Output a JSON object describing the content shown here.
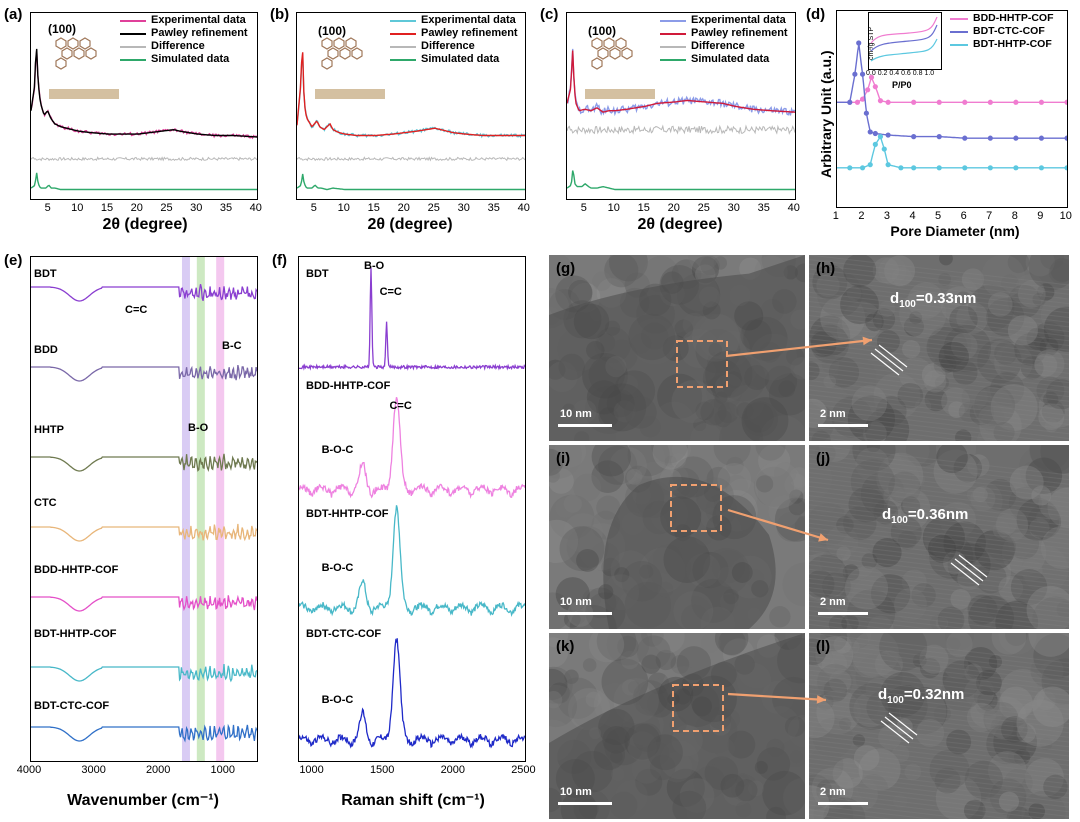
{
  "chart_data": [
    {
      "id": "a",
      "type": "line",
      "label": "(a)",
      "xlabel": "2θ (degree)",
      "xlim": [
        2,
        40
      ],
      "xticks": [
        "5",
        "10",
        "15",
        "20",
        "25",
        "30",
        "35",
        "40"
      ],
      "annotation": "(100)",
      "legend": [
        "Experimental data",
        "Pawley refinement",
        "Difference",
        "Simulated data"
      ],
      "series": [
        {
          "name": "Experimental data",
          "color": "#e0409a",
          "x": [
            2,
            2.6,
            2.9,
            3.2,
            3.6,
            4.2,
            4.8,
            5.3,
            6,
            7,
            8,
            10,
            12,
            15,
            18,
            20,
            22,
            24,
            26,
            27,
            30,
            33,
            36,
            40
          ],
          "y": [
            0.55,
            0.7,
            1.0,
            0.75,
            0.6,
            0.52,
            0.56,
            0.5,
            0.46,
            0.44,
            0.43,
            0.41,
            0.4,
            0.39,
            0.39,
            0.39,
            0.4,
            0.41,
            0.42,
            0.41,
            0.39,
            0.38,
            0.38,
            0.37
          ]
        },
        {
          "name": "Pawley refinement",
          "color": "#000000",
          "x": [
            2,
            2.6,
            2.9,
            3.2,
            3.6,
            4.2,
            4.8,
            5.3,
            6,
            7,
            8,
            10,
            12,
            15,
            18,
            20,
            22,
            24,
            26,
            27,
            30,
            33,
            36,
            40
          ],
          "y": [
            0.55,
            0.72,
            1.02,
            0.74,
            0.6,
            0.52,
            0.55,
            0.5,
            0.46,
            0.44,
            0.43,
            0.41,
            0.4,
            0.39,
            0.39,
            0.39,
            0.4,
            0.41,
            0.42,
            0.41,
            0.39,
            0.38,
            0.38,
            0.37
          ]
        },
        {
          "name": "Difference",
          "color": "#b8b8b8",
          "x": [
            2,
            40
          ],
          "y": [
            0.22,
            0.22
          ]
        },
        {
          "name": "Simulated data",
          "color": "#2ea86a",
          "x": [
            2,
            2.7,
            2.9,
            3.2,
            3.6,
            4.5,
            5,
            5.4,
            6,
            7,
            10,
            20,
            40
          ],
          "y": [
            0.02,
            0.04,
            0.14,
            0.05,
            0.02,
            0.02,
            0.04,
            0.02,
            0.02,
            0.01,
            0.01,
            0.01,
            0.01
          ]
        }
      ]
    },
    {
      "id": "b",
      "type": "line",
      "label": "(b)",
      "xlabel": "2θ (degree)",
      "xlim": [
        2,
        40
      ],
      "xticks": [
        "5",
        "10",
        "15",
        "20",
        "25",
        "30",
        "35",
        "40"
      ],
      "annotation": "(100)",
      "legend": [
        "Experimental data",
        "Pawley refinement",
        "Difference",
        "Simulated data"
      ],
      "series": [
        {
          "name": "Experimental data",
          "color": "#5fc8d8",
          "x": [
            2,
            2.6,
            2.9,
            3.2,
            3.6,
            4.5,
            5.3,
            5.8,
            6.5,
            7.5,
            8,
            9,
            10,
            12,
            15,
            18,
            20,
            22,
            25,
            26,
            28,
            30,
            33,
            36,
            40
          ],
          "y": [
            0.45,
            0.7,
            1.0,
            0.6,
            0.5,
            0.44,
            0.48,
            0.44,
            0.42,
            0.46,
            0.42,
            0.4,
            0.39,
            0.38,
            0.38,
            0.39,
            0.4,
            0.41,
            0.43,
            0.42,
            0.4,
            0.39,
            0.38,
            0.38,
            0.38
          ]
        },
        {
          "name": "Pawley refinement",
          "color": "#e02020",
          "x": [
            2,
            2.6,
            2.9,
            3.2,
            3.6,
            4.5,
            5.3,
            5.8,
            6.5,
            7.5,
            8,
            9,
            10,
            12,
            15,
            18,
            20,
            22,
            25,
            26,
            28,
            30,
            33,
            36,
            40
          ],
          "y": [
            0.45,
            0.72,
            1.02,
            0.6,
            0.5,
            0.44,
            0.48,
            0.44,
            0.42,
            0.46,
            0.42,
            0.4,
            0.39,
            0.38,
            0.38,
            0.39,
            0.4,
            0.41,
            0.43,
            0.42,
            0.4,
            0.39,
            0.38,
            0.38,
            0.38
          ]
        },
        {
          "name": "Difference",
          "color": "#b8b8b8",
          "x": [
            2,
            40
          ],
          "y": [
            0.22,
            0.22
          ]
        },
        {
          "name": "Simulated data",
          "color": "#2ea86a",
          "x": [
            2,
            2.7,
            2.9,
            3.2,
            3.6,
            4.5,
            5,
            5.5,
            6,
            7,
            8,
            10,
            20,
            40
          ],
          "y": [
            0.02,
            0.04,
            0.13,
            0.05,
            0.02,
            0.02,
            0.04,
            0.02,
            0.02,
            0.01,
            0.02,
            0.01,
            0.01,
            0.01
          ]
        }
      ]
    },
    {
      "id": "c",
      "type": "line",
      "label": "(c)",
      "xlabel": "2θ (degree)",
      "xlim": [
        2,
        40
      ],
      "xticks": [
        "5",
        "10",
        "15",
        "20",
        "25",
        "30",
        "35",
        "40"
      ],
      "annotation": "(100)",
      "legend": [
        "Experimental data",
        "Pawley refinement",
        "Difference",
        "Simulated data"
      ],
      "series": [
        {
          "name": "Experimental data",
          "color": "#8c9ce8",
          "x": [
            2,
            2.6,
            3,
            3.2,
            3.5,
            4,
            5,
            6,
            7,
            8,
            9,
            10,
            12,
            15,
            17,
            20,
            22,
            25,
            28,
            30,
            33,
            36,
            40
          ],
          "y": [
            0.6,
            0.7,
            1.0,
            0.7,
            0.6,
            0.55,
            0.57,
            0.55,
            0.58,
            0.54,
            0.56,
            0.55,
            0.56,
            0.58,
            0.6,
            0.61,
            0.62,
            0.61,
            0.6,
            0.58,
            0.56,
            0.55,
            0.54
          ]
        },
        {
          "name": "Pawley refinement",
          "color": "#d01a3a",
          "x": [
            2,
            2.6,
            3,
            3.2,
            3.5,
            4,
            5,
            6,
            7,
            8,
            9,
            10,
            12,
            15,
            17,
            20,
            22,
            25,
            28,
            30,
            33,
            36,
            40
          ],
          "y": [
            0.6,
            0.7,
            1.0,
            0.7,
            0.6,
            0.55,
            0.56,
            0.55,
            0.57,
            0.54,
            0.55,
            0.55,
            0.56,
            0.58,
            0.6,
            0.61,
            0.62,
            0.61,
            0.6,
            0.58,
            0.56,
            0.55,
            0.54
          ]
        },
        {
          "name": "Difference",
          "color": "#b8b8b8",
          "x": [
            2,
            40
          ],
          "y": [
            0.42,
            0.42
          ]
        },
        {
          "name": "Simulated data",
          "color": "#2ea86a",
          "x": [
            2,
            2.7,
            3,
            3.3,
            3.7,
            4.5,
            5,
            5.6,
            6,
            7,
            8,
            10,
            20,
            40
          ],
          "y": [
            0.02,
            0.04,
            0.16,
            0.05,
            0.03,
            0.03,
            0.05,
            0.03,
            0.02,
            0.02,
            0.03,
            0.01,
            0.01,
            0.01
          ]
        }
      ]
    },
    {
      "id": "d",
      "type": "line",
      "label": "(d)",
      "xlabel": "Pore Diameter (nm)",
      "ylabel": "Arbitrary Unit (a.u.)",
      "xlim": [
        1,
        10
      ],
      "xticks": [
        "1",
        "2",
        "3",
        "4",
        "5",
        "6",
        "7",
        "8",
        "9",
        "10"
      ],
      "legend": [
        "BDD-HHTP-COF",
        "BDT-CTC-COF",
        "BDT-HHTP-COF"
      ],
      "inset": {
        "ylabel": "cm³/g STP",
        "xlabel": "P/P0",
        "xticks": [
          "0.0",
          "0.2",
          "0.4",
          "0.6",
          "0.8",
          "1.0"
        ]
      },
      "series": [
        {
          "name": "BDD-HHTP-COF",
          "color": "#f07cd0",
          "x": [
            1.5,
            1.8,
            2,
            2.2,
            2.35,
            2.5,
            2.7,
            3,
            4,
            5,
            6,
            7,
            8,
            9,
            10
          ],
          "y": [
            0.62,
            0.62,
            0.64,
            0.7,
            0.78,
            0.72,
            0.63,
            0.62,
            0.62,
            0.62,
            0.62,
            0.62,
            0.62,
            0.62,
            0.62
          ]
        },
        {
          "name": "BDT-CTC-COF",
          "color": "#6a6fd0",
          "x": [
            1.5,
            1.7,
            1.85,
            2,
            2.15,
            2.3,
            2.5,
            3,
            4,
            5,
            6,
            7,
            8,
            9,
            10
          ],
          "y": [
            0.62,
            0.8,
            1.0,
            0.8,
            0.55,
            0.43,
            0.42,
            0.41,
            0.4,
            0.4,
            0.39,
            0.39,
            0.39,
            0.39,
            0.39
          ]
        },
        {
          "name": "BDT-HHTP-COF",
          "color": "#5cc8e0",
          "x": [
            1.5,
            2,
            2.3,
            2.5,
            2.7,
            2.85,
            3,
            3.5,
            4,
            5,
            6,
            7,
            8,
            9,
            10
          ],
          "y": [
            0.2,
            0.2,
            0.22,
            0.35,
            0.4,
            0.32,
            0.22,
            0.2,
            0.2,
            0.2,
            0.2,
            0.2,
            0.2,
            0.2,
            0.2
          ]
        }
      ]
    },
    {
      "id": "e",
      "type": "line",
      "label": "(e)",
      "xlabel": "Wavenumber (cm⁻¹)",
      "xlim": [
        4000,
        500
      ],
      "xticks": [
        "4000",
        "3000",
        "2000",
        "1000"
      ],
      "annotations": [
        "C=C",
        "B-C",
        "B-O"
      ],
      "series": [
        {
          "name": "BDT",
          "color": "#8a3ed0"
        },
        {
          "name": "BDD",
          "color": "#7a68a8"
        },
        {
          "name": "HHTP",
          "color": "#6f7a50"
        },
        {
          "name": "CTC",
          "color": "#e8b67a"
        },
        {
          "name": "BDD-HHTP-COF",
          "color": "#e450c8"
        },
        {
          "name": "BDT-HHTP-COF",
          "color": "#48b8c8"
        },
        {
          "name": "BDT-CTC-COF",
          "color": "#3070c8"
        }
      ]
    },
    {
      "id": "f",
      "type": "line",
      "label": "(f)",
      "xlabel": "Raman shift (cm⁻¹)",
      "xlim": [
        900,
        2500
      ],
      "xticks": [
        "1000",
        "1500",
        "2000",
        "2500"
      ],
      "series": [
        {
          "name": "BDT",
          "color": "#8a3ed0",
          "peaks": [
            {
              "label": "B-O",
              "x": 1410
            },
            {
              "label": "C=C",
              "x": 1520
            }
          ]
        },
        {
          "name": "BDD-HHTP-COF",
          "color": "#ee82e0",
          "peaks": [
            {
              "label": "B-O-C",
              "x": 1350
            },
            {
              "label": "C=C",
              "x": 1590
            }
          ]
        },
        {
          "name": "BDT-HHTP-COF",
          "color": "#48b8c8",
          "peaks": [
            {
              "label": "B-O-C",
              "x": 1350
            }
          ]
        },
        {
          "name": "BDT-CTC-COF",
          "color": "#1f2ac8",
          "peaks": [
            {
              "label": "B-O-C",
              "x": 1350
            }
          ]
        }
      ]
    }
  ],
  "tem_panels": [
    {
      "label": "(g)",
      "scale": "10 nm"
    },
    {
      "label": "(h)",
      "scale": "2 nm",
      "spacing": "d",
      "sub": "100",
      "value": "=0.33nm"
    },
    {
      "label": "(i)",
      "scale": "10 nm"
    },
    {
      "label": "(j)",
      "scale": "2 nm",
      "spacing": "d",
      "sub": "100",
      "value": "=0.36nm"
    },
    {
      "label": "(k)",
      "scale": "10 nm"
    },
    {
      "label": "(l)",
      "scale": "2 nm",
      "spacing": "d",
      "sub": "100",
      "value": "=0.32nm"
    }
  ]
}
